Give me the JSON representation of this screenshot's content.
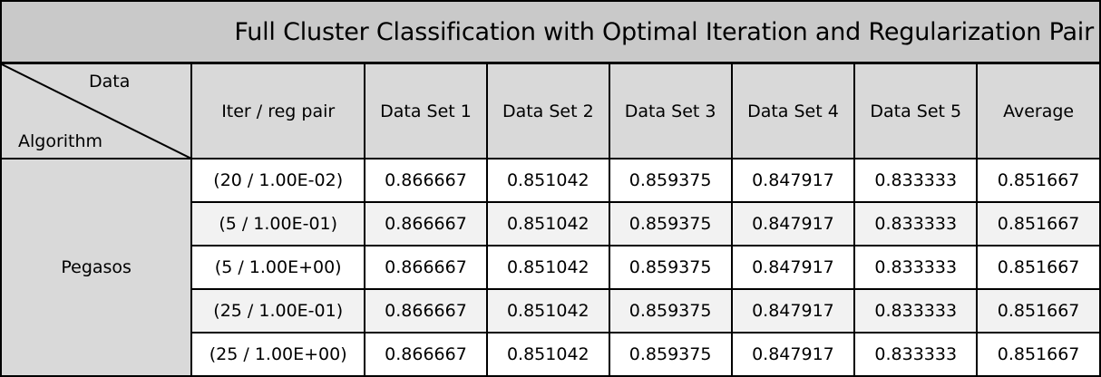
{
  "title": "Full Cluster Classification with Optimal Iteration and Regularization Pair",
  "corner": {
    "top_label": "Data",
    "bottom_label": "Algorithm"
  },
  "columns": [
    "Iter / reg pair",
    "Data Set 1",
    "Data Set 2",
    "Data Set 3",
    "Data Set 4",
    "Data Set 5",
    "Average"
  ],
  "algorithm": "Pegasos",
  "rows": [
    {
      "pair": "(20 / 1.00E-02)",
      "values": [
        "0.866667",
        "0.851042",
        "0.859375",
        "0.847917",
        "0.833333",
        "0.851667"
      ]
    },
    {
      "pair": "(5 / 1.00E-01)",
      "values": [
        "0.866667",
        "0.851042",
        "0.859375",
        "0.847917",
        "0.833333",
        "0.851667"
      ]
    },
    {
      "pair": "(5 / 1.00E+00)",
      "values": [
        "0.866667",
        "0.851042",
        "0.859375",
        "0.847917",
        "0.833333",
        "0.851667"
      ]
    },
    {
      "pair": "(25 / 1.00E-01)",
      "values": [
        "0.866667",
        "0.851042",
        "0.859375",
        "0.847917",
        "0.833333",
        "0.851667"
      ]
    },
    {
      "pair": "(25 / 1.00E+00)",
      "values": [
        "0.866667",
        "0.851042",
        "0.859375",
        "0.847917",
        "0.833333",
        "0.851667"
      ]
    }
  ],
  "colors": {
    "title_bg": "#c9c9c9",
    "header_bg": "#d9d9d9",
    "shaded_row_bg": "#f2f2f2",
    "border": "#000000"
  }
}
